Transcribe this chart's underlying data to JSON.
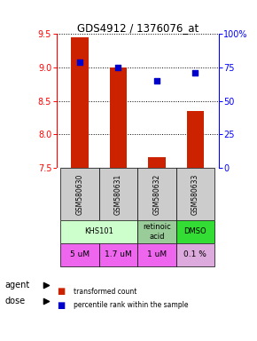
{
  "title": "GDS4912 / 1376076_at",
  "samples": [
    "GSM580630",
    "GSM580631",
    "GSM580632",
    "GSM580633"
  ],
  "bar_values": [
    9.45,
    9.0,
    7.65,
    8.35
  ],
  "percentile_values": [
    79,
    75,
    65,
    71
  ],
  "ylim_left": [
    7.5,
    9.5
  ],
  "ylim_right": [
    0,
    100
  ],
  "yticks_left": [
    7.5,
    8.0,
    8.5,
    9.0,
    9.5
  ],
  "yticks_right": [
    0,
    25,
    50,
    75,
    100
  ],
  "bar_color": "#cc2200",
  "dot_color": "#0000cc",
  "bar_width": 0.45,
  "agent_groups": [
    {
      "label": "KHS101",
      "cols": [
        1,
        2
      ],
      "color": "#ccffcc"
    },
    {
      "label": "retinoic\nacid",
      "cols": [
        3
      ],
      "color": "#99cc99"
    },
    {
      "label": "DMSO",
      "cols": [
        4
      ],
      "color": "#33dd33"
    }
  ],
  "dose_labels": [
    "5 uM",
    "1.7 uM",
    "1 uM",
    "0.1 %"
  ],
  "dose_colors": [
    "#ee66ee",
    "#ee66ee",
    "#ee66ee",
    "#ddaadd"
  ],
  "sample_bg_color": "#cccccc",
  "legend_bar_label": "transformed count",
  "legend_dot_label": "percentile rank within the sample",
  "n": 4
}
